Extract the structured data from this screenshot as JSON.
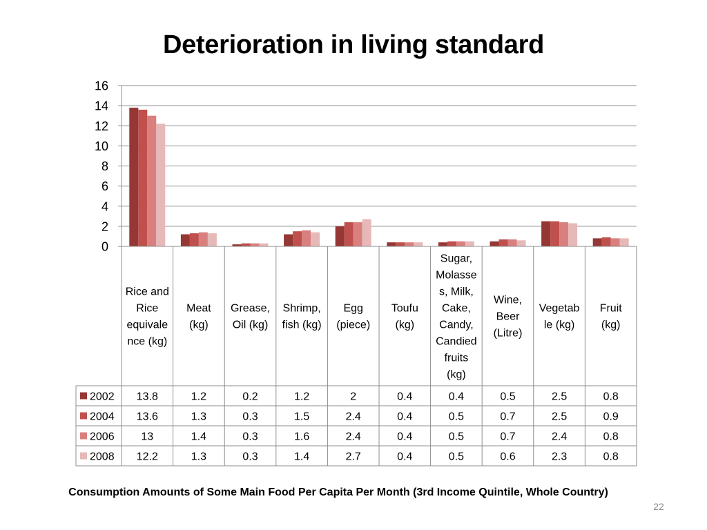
{
  "slide": {
    "title": "Deterioration in living standard",
    "caption": "Consumption Amounts of Some Main Food Per Capita Per Month (3rd Income Quintile, Whole Country)",
    "page_number": "22"
  },
  "chart_data": {
    "type": "bar",
    "title": "",
    "xlabel": "",
    "ylabel": "",
    "ylim": [
      0,
      16
    ],
    "yticks": [
      0,
      2,
      4,
      6,
      8,
      10,
      12,
      14,
      16
    ],
    "grid": true,
    "legend": "data-table-left",
    "categories": [
      "Rice and Rice equivalence (kg)",
      "Meat (kg)",
      "Grease, Oil (kg)",
      "Shrimp, fish (kg)",
      "Egg (piece)",
      "Toufu (kg)",
      "Sugar, Molasses, Milk, Cake, Candy, Candied fruits (kg)",
      "Wine, Beer (Litre)",
      "Vegetable (kg)",
      "Fruit (kg)"
    ],
    "category_lines": [
      [
        "Rice and",
        "Rice",
        "equivale",
        "nce (kg)"
      ],
      [
        "Meat",
        "(kg)"
      ],
      [
        "Grease,",
        "Oil (kg)"
      ],
      [
        "Shrimp,",
        "fish (kg)"
      ],
      [
        "Egg",
        "(piece)"
      ],
      [
        "Toufu",
        "(kg)"
      ],
      [
        "Sugar,",
        "Molasse",
        "s, Milk,",
        "Cake,",
        "Candy,",
        "Candied",
        "fruits",
        "(kg)"
      ],
      [
        "Wine,",
        "Beer",
        "(Litre)"
      ],
      [
        "Vegetab",
        "le (kg)"
      ],
      [
        "Fruit",
        "(kg)"
      ]
    ],
    "series": [
      {
        "name": "2002",
        "color": "#953735",
        "values": [
          13.8,
          1.2,
          0.2,
          1.2,
          2,
          0.4,
          0.4,
          0.5,
          2.5,
          0.8
        ]
      },
      {
        "name": "2004",
        "color": "#c0504d",
        "values": [
          13.6,
          1.3,
          0.3,
          1.5,
          2.4,
          0.4,
          0.5,
          0.7,
          2.5,
          0.9
        ]
      },
      {
        "name": "2006",
        "color": "#d9807e",
        "values": [
          13,
          1.4,
          0.3,
          1.6,
          2.4,
          0.4,
          0.5,
          0.7,
          2.4,
          0.8
        ]
      },
      {
        "name": "2008",
        "color": "#e6b9b8",
        "values": [
          12.2,
          1.3,
          0.3,
          1.4,
          2.7,
          0.4,
          0.5,
          0.6,
          2.3,
          0.8
        ]
      }
    ]
  }
}
